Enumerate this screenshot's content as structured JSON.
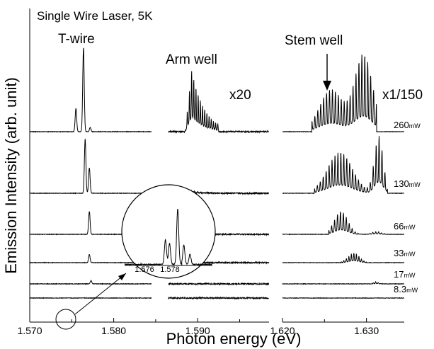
{
  "chart_data": {
    "type": "line",
    "title": "Single Wire Laser, 5K",
    "xlabel": "Photon energy (eV)",
    "ylabel": "Emission Intensity (arb. unit)",
    "x_segments": [
      {
        "name": "T-wire / Arm well",
        "xlim": [
          1.57,
          1.5985
        ],
        "ticks": [
          "1.570",
          "1.580",
          "1.590"
        ]
      },
      {
        "name": "Stem well",
        "xlim": [
          1.62,
          1.6345
        ],
        "ticks": [
          "1.620",
          "1.630"
        ]
      }
    ],
    "region_labels": [
      "T-wire",
      "Arm well",
      "Stem well"
    ],
    "scale_labels": [
      "x20",
      "x1/150"
    ],
    "power_unit": "mW",
    "series": [
      {
        "name": "260",
        "tw_peaks": [
          [
            1.5755,
            0.28
          ],
          [
            1.5764,
            1.0
          ],
          [
            1.5772,
            0.05
          ]
        ],
        "arm": {
          "lo": 1.5885,
          "hi": 1.5925,
          "peak": 1.5893,
          "amp": 0.75,
          "spacing": 0.00026
        },
        "stem": {
          "lo": 1.6235,
          "hi": 1.6312,
          "amp": 0.92,
          "spacing": 0.00035
        }
      },
      {
        "name": "130",
        "tw_peaks": [
          [
            1.5766,
            0.9
          ],
          [
            1.5771,
            0.42
          ]
        ],
        "arm": {
          "lo": 1.588,
          "hi": 1.592,
          "peak": 1.589,
          "amp": 0.05,
          "spacing": 0.0004
        },
        "stem": {
          "lo": 1.6238,
          "hi": 1.6325,
          "amp": 0.95,
          "spacing": 0.00035
        }
      },
      {
        "name": "66",
        "tw_peaks": [
          [
            1.5771,
            0.62
          ]
        ],
        "arm": {
          "lo": 1.588,
          "hi": 1.592,
          "peak": 1.589,
          "amp": 0.03,
          "spacing": 0.0004
        },
        "stem": {
          "lo": 1.6255,
          "hi": 1.6322,
          "amp": 0.62,
          "spacing": 0.00035
        }
      },
      {
        "name": "33",
        "tw_peaks": [
          [
            1.5771,
            0.38
          ]
        ],
        "arm": {
          "lo": 1.588,
          "hi": 1.592,
          "peak": 1.589,
          "amp": 0.0,
          "spacing": 0.0004
        },
        "stem": {
          "lo": 1.627,
          "hi": 1.63,
          "amp": 0.45,
          "spacing": 0.0003
        }
      },
      {
        "name": "17",
        "tw_peaks": [
          [
            1.5773,
            0.22
          ]
        ],
        "arm": {
          "lo": 1.588,
          "hi": 1.592,
          "peak": 1.589,
          "amp": 0.0,
          "spacing": 0.0004
        },
        "stem": {
          "lo": 1.6305,
          "hi": 1.6318,
          "amp": 0.15,
          "spacing": 0.0003
        }
      },
      {
        "name": "8.3",
        "tw_peaks": [],
        "arm": {
          "lo": 1.588,
          "hi": 1.592,
          "peak": 1.589,
          "amp": 0.0,
          "spacing": 0.0004
        },
        "stem": {
          "lo": 1.62,
          "hi": 1.62,
          "amp": 0.0,
          "spacing": 0.0004
        }
      }
    ],
    "inset": {
      "xlim": [
        1.5752,
        1.5795
      ],
      "ticks": [
        "1.576",
        "1.578"
      ],
      "peaks": [
        [
          1.5772,
          0.45
        ],
        [
          1.5774,
          0.38
        ],
        [
          1.5778,
          1.0
        ],
        [
          1.5781,
          0.35
        ],
        [
          1.5784,
          0.18
        ]
      ]
    },
    "grid": false,
    "legend": "none"
  }
}
